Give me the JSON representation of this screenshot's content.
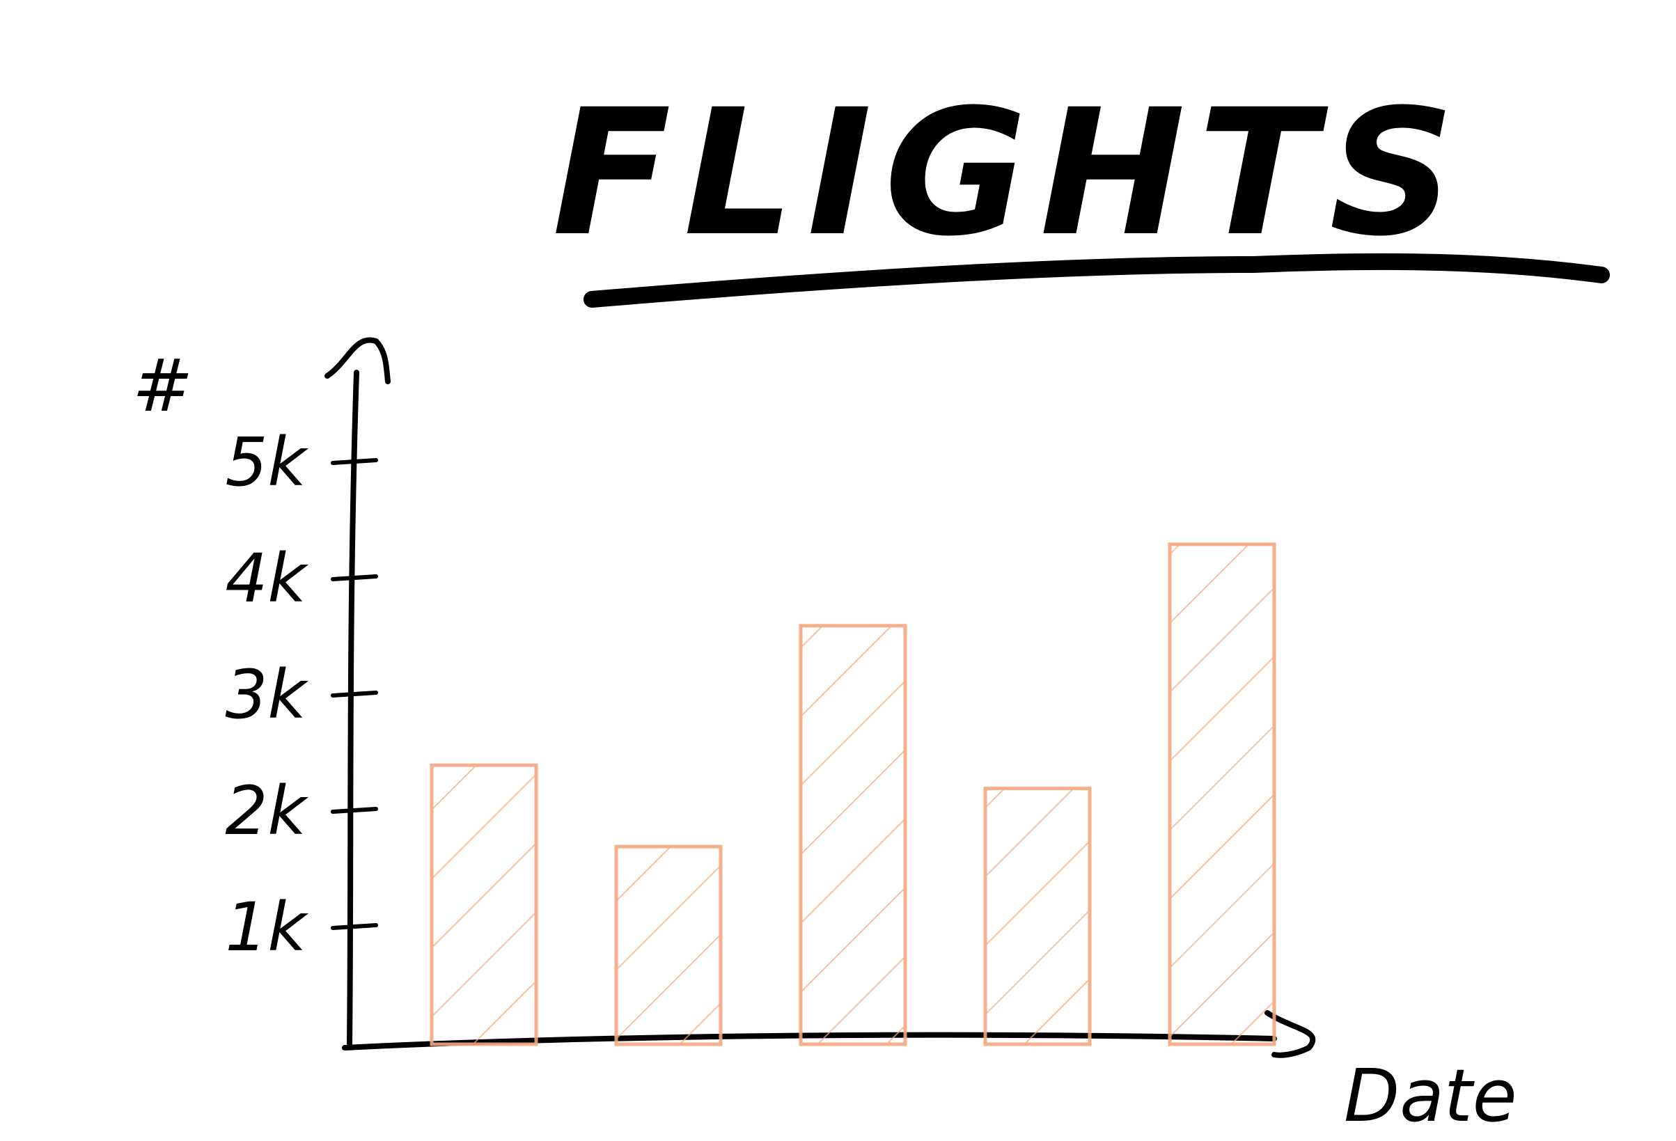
{
  "chart_data": {
    "type": "bar",
    "title": "FLIGHTS",
    "xlabel": "Date",
    "ylabel": "#",
    "y_ticks": [
      {
        "value": 1000,
        "label": "1k"
      },
      {
        "value": 2000,
        "label": "2k"
      },
      {
        "value": 3000,
        "label": "3k"
      },
      {
        "value": 4000,
        "label": "4k"
      },
      {
        "value": 5000,
        "label": "5k"
      }
    ],
    "ylim": [
      0,
      5000
    ],
    "values": [
      2400,
      1700,
      3600,
      2200,
      4300
    ],
    "grid": false,
    "legend": "none",
    "colors": {
      "bar": "#f4a77f",
      "ink": "#000000"
    }
  }
}
